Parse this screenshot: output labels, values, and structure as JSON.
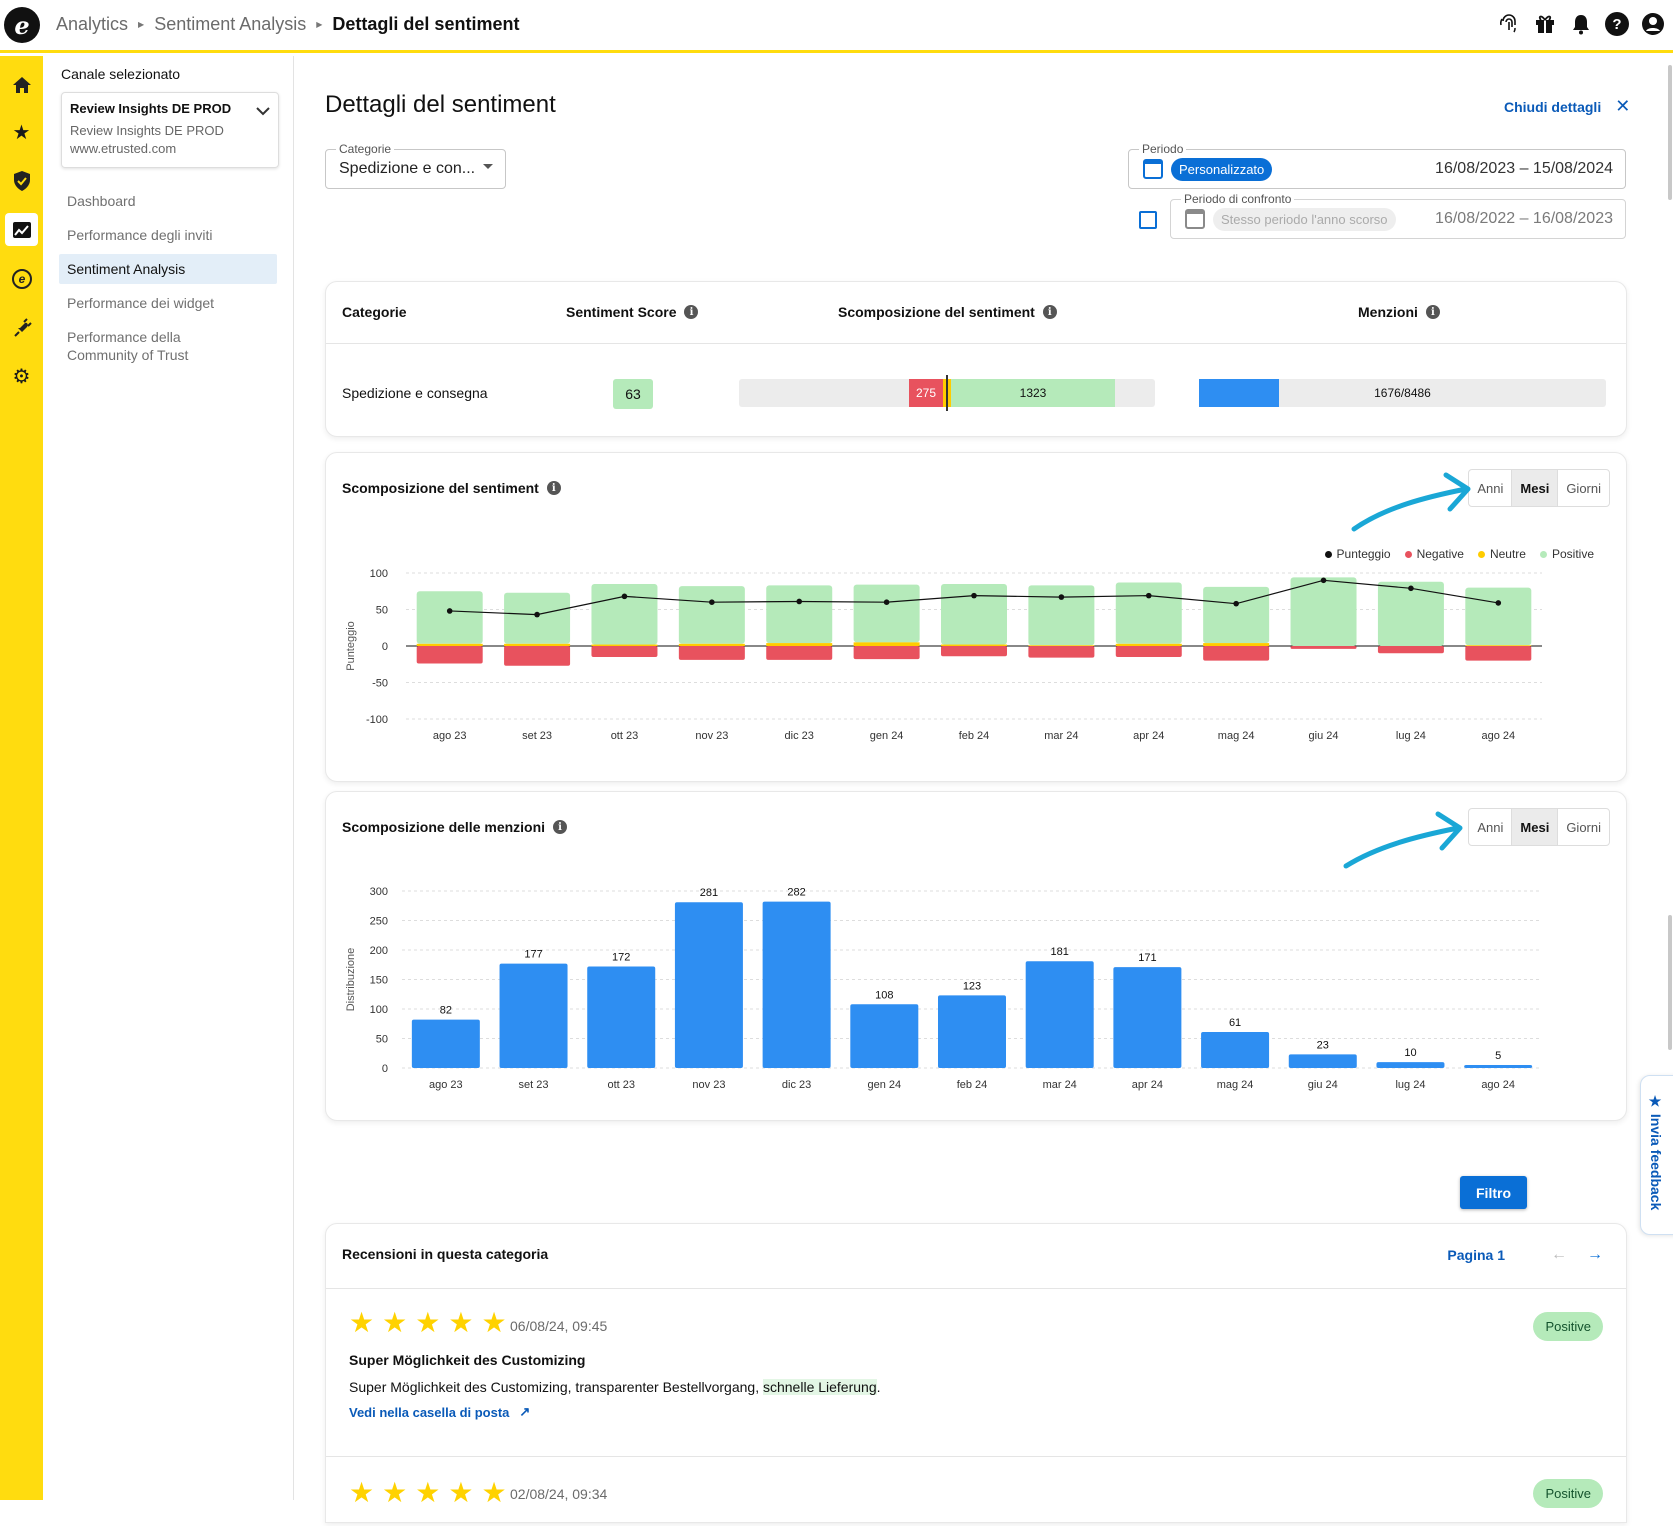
{
  "topbar": {
    "logo": "e",
    "breadcrumb": [
      "Analytics",
      "Sentiment Analysis",
      "Dettagli del sentiment"
    ],
    "icons": [
      "fingerprint-icon",
      "gift-icon",
      "bell-icon",
      "help-icon",
      "account-icon"
    ]
  },
  "rail": {
    "icons": [
      "home-icon",
      "star-icon",
      "shield-check-icon",
      "analytics-icon",
      "etrusted-icon",
      "plug-icon",
      "settings-icon"
    ],
    "active": "analytics-icon"
  },
  "sidebar": {
    "channel_label": "Canale selezionato",
    "channel": {
      "name": "Review Insights DE PROD",
      "sub": "Review Insights DE PROD",
      "url": "www.etrusted.com"
    },
    "items": [
      {
        "label": "Dashboard",
        "active": false
      },
      {
        "label": "Performance degli inviti",
        "active": false
      },
      {
        "label": "Sentiment Analysis",
        "active": true
      },
      {
        "label": "Performance dei widget",
        "active": false
      },
      {
        "label": "Performance della Community of Trust",
        "active": false
      }
    ]
  },
  "header": {
    "title": "Dettagli del sentiment",
    "close_label": "Chiudi dettagli"
  },
  "filters": {
    "category": {
      "label": "Categorie",
      "value": "Spedizione e con..."
    },
    "period": {
      "label": "Periodo",
      "chip": "Personalizzato",
      "range": "16/08/2023 – 15/08/2024"
    },
    "compare": {
      "label": "Periodo di confronto",
      "chip": "Stesso periodo l'anno scorso",
      "range": "16/08/2022 – 16/08/2023",
      "checked": false
    }
  },
  "summary_table": {
    "headers": [
      "Categorie",
      "Sentiment Score",
      "Scomposizione del sentiment",
      "Menzioni"
    ],
    "row": {
      "category": "Spedizione e consegna",
      "score": "63",
      "negative": "275",
      "positive": "1323",
      "mentions_label": "1676/8486",
      "mentions_fraction": 0.1975
    }
  },
  "sentiment_card": {
    "title": "Scomposizione del sentiment",
    "toggle": [
      "Anni",
      "Mesi",
      "Giorni"
    ],
    "selected": "Mesi",
    "legend": [
      "Punteggio",
      "Negative",
      "Neutre",
      "Positive"
    ]
  },
  "mentions_card": {
    "title": "Scomposizione delle menzioni",
    "toggle": [
      "Anni",
      "Mesi",
      "Giorni"
    ],
    "selected": "Mesi"
  },
  "chart_data": [
    {
      "type": "bar",
      "title": "Scomposizione del sentiment",
      "ylabel": "Punteggio",
      "ylim": [
        -100,
        100
      ],
      "yticks": [
        100,
        50,
        0,
        -50,
        -100
      ],
      "categories": [
        "ago 23",
        "set 23",
        "ott 23",
        "nov 23",
        "dic 23",
        "gen 24",
        "feb 24",
        "mar 24",
        "apr 24",
        "mag 24",
        "giu 24",
        "lug 24",
        "ago 24"
      ],
      "series": [
        {
          "name": "Positive",
          "color": "#b5eaba",
          "values": [
            72,
            70,
            83,
            79,
            79,
            79,
            83,
            82,
            84,
            77,
            94,
            88,
            79
          ]
        },
        {
          "name": "Neutre",
          "color": "#ffcc00",
          "values": [
            3,
            3,
            2,
            3,
            4,
            5,
            2,
            1,
            3,
            4,
            0,
            0,
            1
          ]
        },
        {
          "name": "Negative",
          "color": "#e8525e",
          "values": [
            -24,
            -27,
            -15,
            -19,
            -19,
            -18,
            -14,
            -16,
            -15,
            -20,
            -4,
            -10,
            -20
          ]
        },
        {
          "name": "Punteggio",
          "color": "#111111",
          "values": [
            48,
            43,
            68,
            60,
            61,
            60,
            69,
            67,
            69,
            58,
            90,
            79,
            59
          ]
        }
      ],
      "legend_position": "top-right",
      "grid": true
    },
    {
      "type": "bar",
      "title": "Scomposizione delle menzioni",
      "ylabel": "Distribuzione",
      "ylim": [
        0,
        300
      ],
      "yticks": [
        300,
        250,
        200,
        150,
        100,
        50,
        0
      ],
      "categories": [
        "ago 23",
        "set 23",
        "ott 23",
        "nov 23",
        "dic 23",
        "gen 24",
        "feb 24",
        "mar 24",
        "apr 24",
        "mag 24",
        "giu 24",
        "lug 24",
        "ago 24"
      ],
      "values": [
        82,
        177,
        172,
        281,
        282,
        108,
        123,
        181,
        171,
        61,
        23,
        10,
        5
      ],
      "color": "#2e8ef2",
      "grid": true
    }
  ],
  "filter_button": "Filtro",
  "reviews": {
    "title": "Recensioni in questa categoria",
    "page": "Pagina 1",
    "items": [
      {
        "stars": 5,
        "date": "06/08/24, 09:45",
        "tag": "Positive",
        "title": "Super Möglichkeit des Customizing",
        "text_before": "Super Möglichkeit des Customizing, transparenter Bestellvorgang, ",
        "text_highlight": "schnelle Lieferung",
        "text_after": ".",
        "link": "Vedi nella casella di posta"
      },
      {
        "stars": 5,
        "date": "02/08/24, 09:34",
        "tag": "Positive"
      }
    ]
  },
  "feedback_tab": "Invia feedback",
  "colors": {
    "accent": "#ffdc0f",
    "primary": "#0a6fd6",
    "positive": "#b5eaba",
    "negative": "#e8525e",
    "neutral": "#ffcc00",
    "bar": "#2e8ef2"
  }
}
